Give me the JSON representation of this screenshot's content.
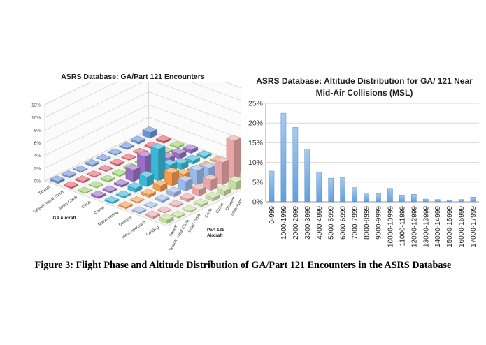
{
  "caption": "Figure 3: Flight Phase and Altitude Distribution of GA/Part 121 Encounters in the ASRS Database",
  "chart_data": [
    {
      "type": "bar3d",
      "title": "ASRS Database: GA/Part 121 Encounters",
      "x_axis_label": "GA Aircraft",
      "y_axis_label": "Part 121 Aircraft",
      "ga_phases": [
        "Takeoff",
        "Takeoff: Initial Climb",
        "Initial Climb",
        "Climb",
        "Cruise",
        "Maneuvering",
        "Descent",
        "Initial Approach",
        "Landing"
      ],
      "part121_phases": [
        "Takeoff",
        "Takeoff: Initial Climb",
        "Initial Climb",
        "Climb",
        "Cruise",
        "Descent",
        "Initial Approach",
        "Final Approach",
        "Landing"
      ],
      "z_ticks": [
        "0%",
        "2%",
        "4%",
        "6%",
        "8%",
        "10%",
        "12%"
      ],
      "zlim": [
        0,
        12
      ],
      "values": [
        [
          0.3,
          0.2,
          0.1,
          0.2,
          0.1,
          0.1,
          0.2,
          0.3,
          0.9
        ],
        [
          0.2,
          0.2,
          0.1,
          0.1,
          0.2,
          0.1,
          0.1,
          0.2,
          0.3
        ],
        [
          0.1,
          0.1,
          0.2,
          0.2,
          0.3,
          0.2,
          0.2,
          0.2,
          0.2
        ],
        [
          0.3,
          0.2,
          0.3,
          1.8,
          3.0,
          1.2,
          1.0,
          0.8,
          0.5
        ],
        [
          0.2,
          0.2,
          0.6,
          1.5,
          5.0,
          1.6,
          0.9,
          0.5,
          0.3
        ],
        [
          0.2,
          0.1,
          0.4,
          0.9,
          2.0,
          0.9,
          0.5,
          0.3,
          0.2
        ],
        [
          0.2,
          0.1,
          0.3,
          0.6,
          1.5,
          2.3,
          1.8,
          1.0,
          0.3
        ],
        [
          0.3,
          0.1,
          0.2,
          0.4,
          1.0,
          1.6,
          3.5,
          6.0,
          0.8
        ],
        [
          0.6,
          0.2,
          0.2,
          0.3,
          0.5,
          0.7,
          1.2,
          1.4,
          0.4
        ]
      ],
      "row_colors": [
        "#6b93d6",
        "#e8606f",
        "#9ad36a",
        "#9a6fc4",
        "#39b7d6",
        "#f29b4a",
        "#9bb9e8",
        "#e9a6a6",
        "#c3dea0"
      ]
    },
    {
      "type": "bar",
      "title": "ASRS Database: Altitude Distribution for GA/ 121 Near Mid-Air Collisions (MSL)",
      "categories": [
        "0-999",
        "1000-1999",
        "2000-2999",
        "3000-3999",
        "4000-4999",
        "5000-5999",
        "6000-6999",
        "7000-7999",
        "8000-8999",
        "9000-9999",
        "10000-10999",
        "11000-11999",
        "12000-12999",
        "13000-13999",
        "14000-14999",
        "15000-15999",
        "16000-16999",
        "17000-17999"
      ],
      "values": [
        7.8,
        22.5,
        18.9,
        13.4,
        7.6,
        6.0,
        6.2,
        3.6,
        2.2,
        2.1,
        3.4,
        1.7,
        1.9,
        0.7,
        0.6,
        0.5,
        0.6,
        1.2
      ],
      "y_ticks": [
        "0%",
        "5%",
        "10%",
        "15%",
        "20%",
        "25%"
      ],
      "ylim": [
        0,
        25
      ],
      "grid": true,
      "bar_color": "#5f9fe0"
    }
  ]
}
